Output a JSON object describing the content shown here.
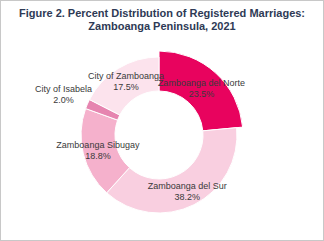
{
  "chart_data": {
    "type": "donut",
    "title": "Figure 2. Percent Distribution of Registered Marriages: Zamboanga Peninsula, 2021",
    "categories": [
      "Zamboanga del Norte",
      "Zamboanga del Sur",
      "Zamboanga Sibugay",
      "City of Isabela",
      "City of Zamboanga"
    ],
    "values": [
      23.5,
      38.2,
      18.8,
      2.0,
      17.5
    ],
    "value_labels": [
      "23.5%",
      "38.2%",
      "18.8%",
      "2.0%",
      "17.5%"
    ],
    "colors": [
      "#e8035e",
      "#f9cfe0",
      "#f5b1cc",
      "#e685b0",
      "#fce3ed"
    ],
    "data_labels": true
  }
}
